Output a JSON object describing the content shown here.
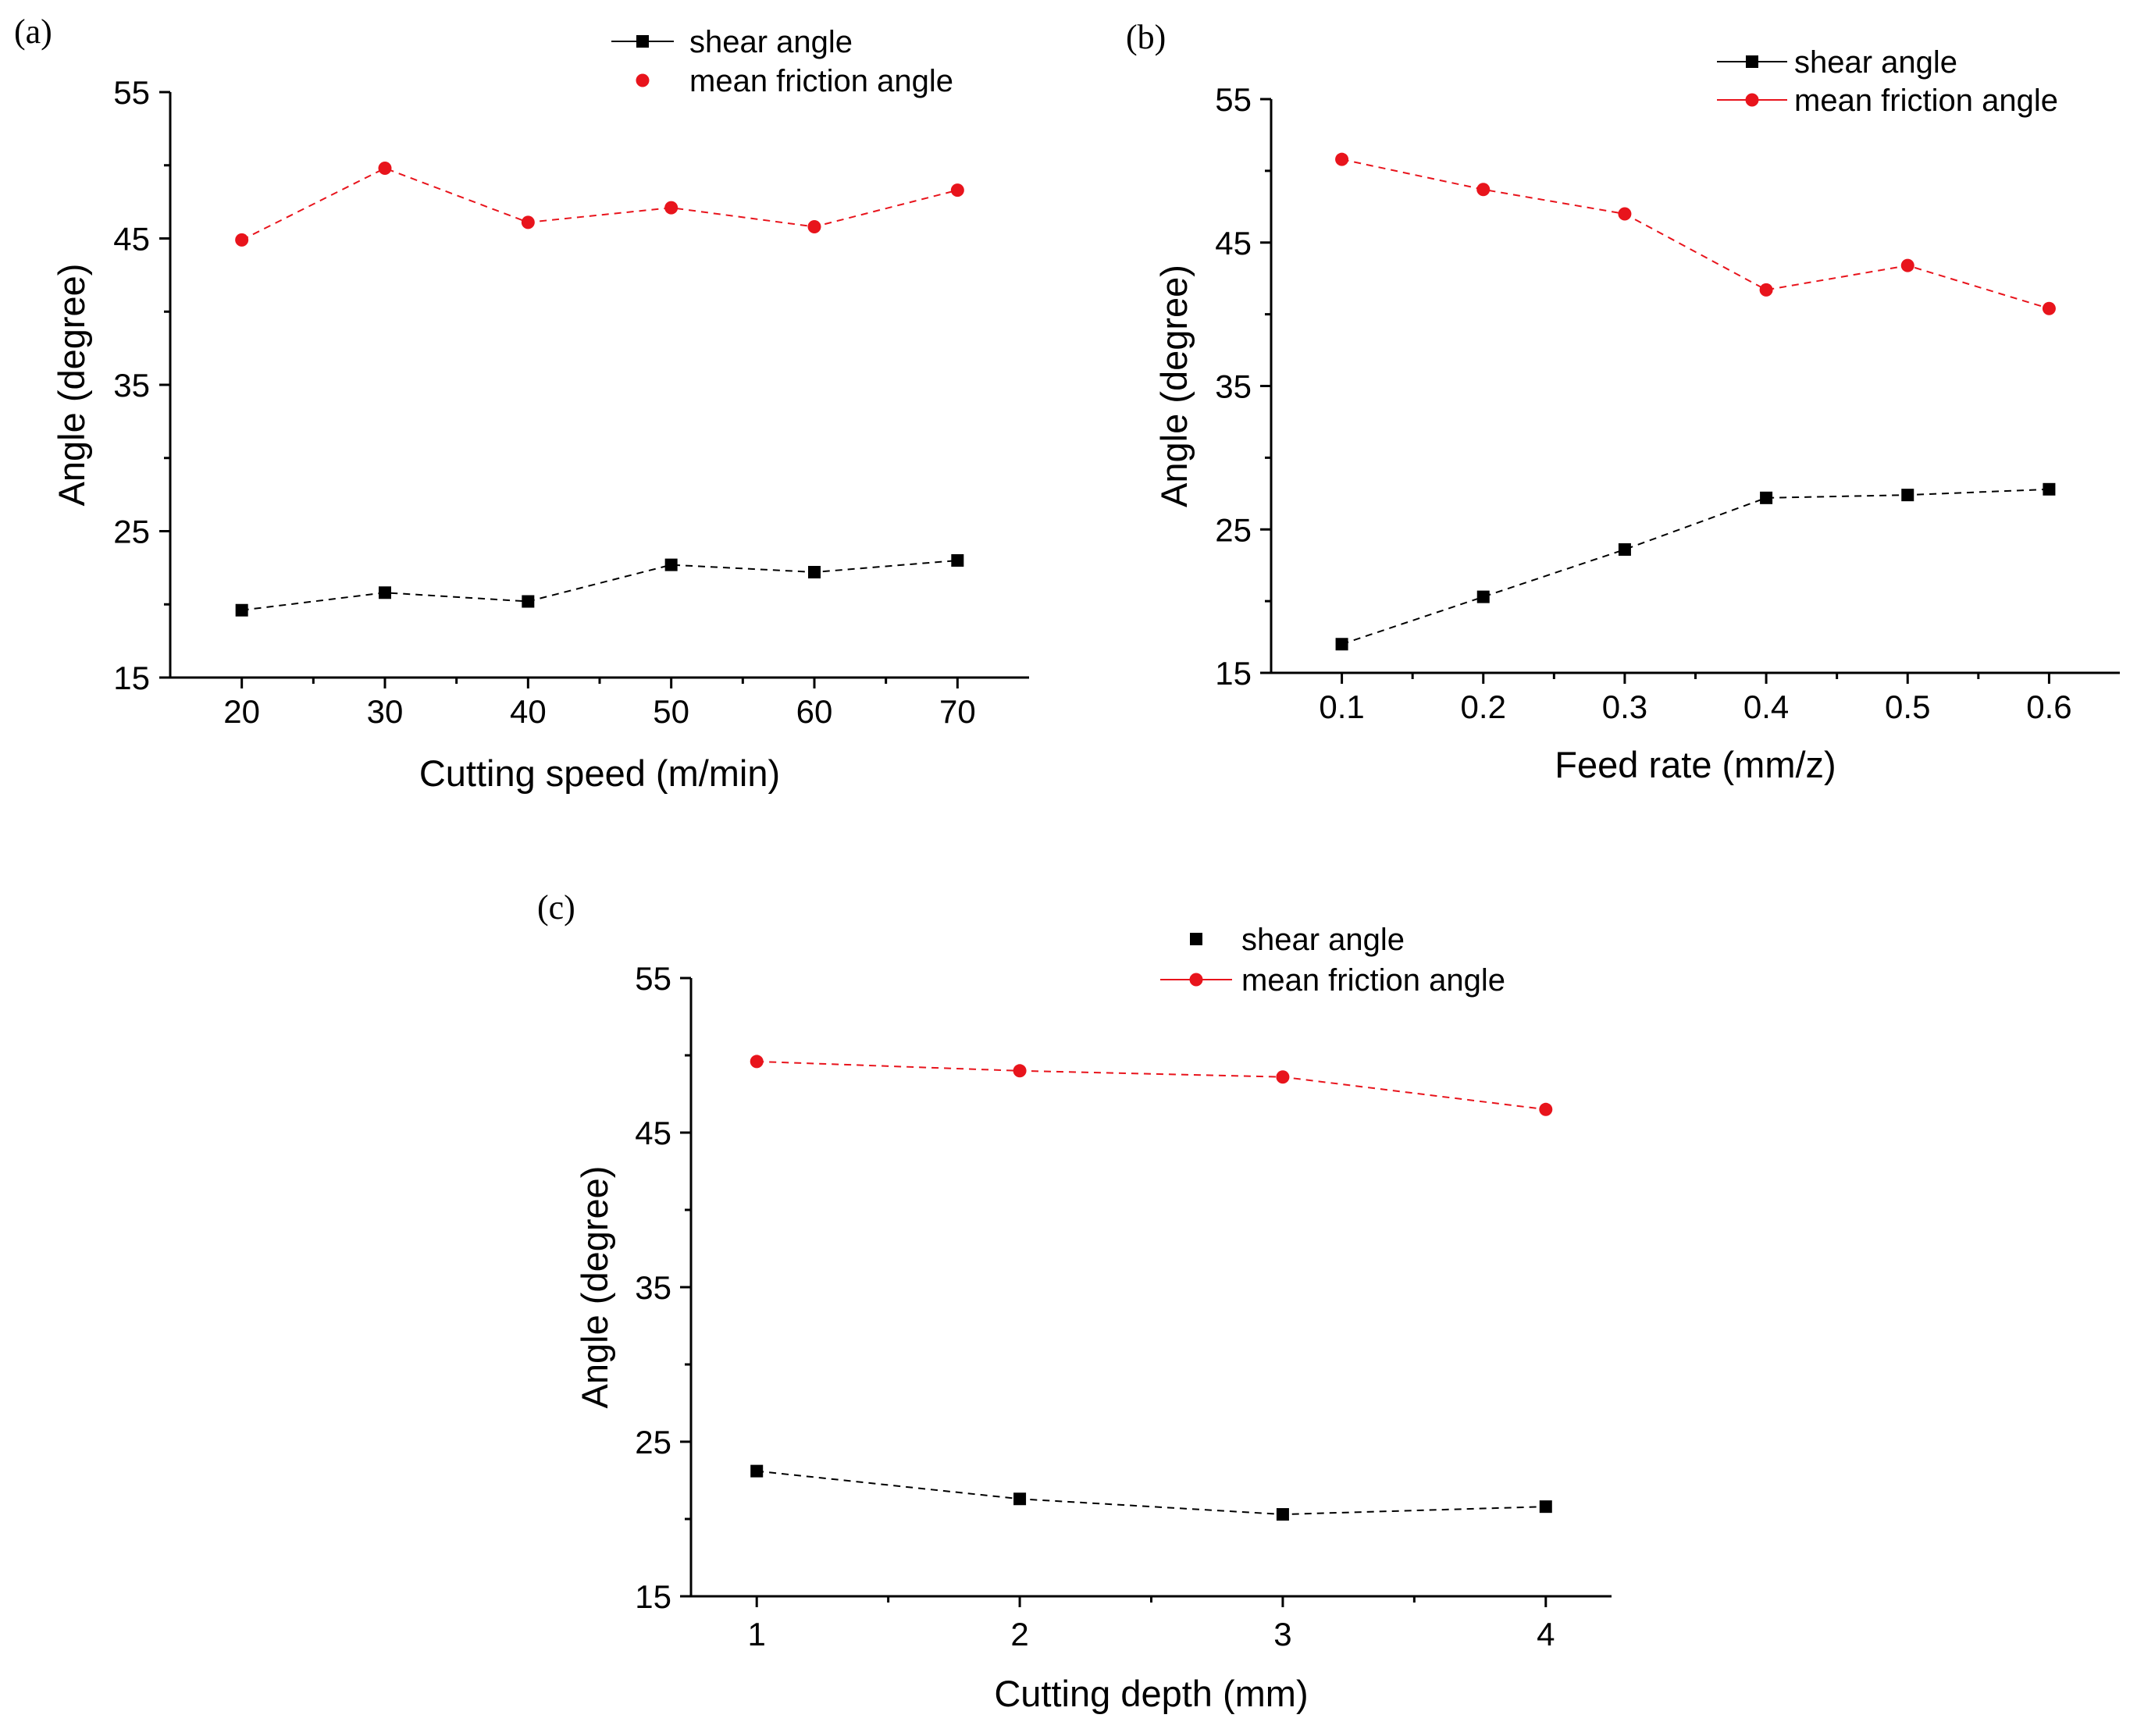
{
  "chart_data": [
    {
      "type": "line",
      "panel_label": "(a)",
      "xlabel": "Cutting speed (m/min)",
      "ylabel": "Angle (degree)",
      "x": [
        20,
        30,
        40,
        50,
        60,
        70
      ],
      "x_ticks": [
        "20",
        "30",
        "40",
        "50",
        "60",
        "70"
      ],
      "xlim": [
        15,
        75
      ],
      "ylim": [
        15,
        55
      ],
      "y_ticks": [
        "15",
        "25",
        "35",
        "45",
        "55"
      ],
      "grid": false,
      "legend_position": "top-right",
      "series": [
        {
          "name": "shear angle",
          "color": "#000000",
          "marker": "square",
          "values": [
            19.6,
            20.8,
            20.2,
            22.7,
            22.2,
            23.0
          ]
        },
        {
          "name": "mean friction angle",
          "color": "#e8141c",
          "marker": "circle",
          "values": [
            44.9,
            49.8,
            46.1,
            47.1,
            45.8,
            48.3
          ]
        }
      ]
    },
    {
      "type": "line",
      "panel_label": "(b)",
      "xlabel": "Feed rate (mm/z)",
      "ylabel": "Angle (degree)",
      "x": [
        0.1,
        0.2,
        0.3,
        0.4,
        0.5,
        0.6
      ],
      "x_ticks": [
        "0.1",
        "0.2",
        "0.3",
        "0.4",
        "0.5",
        "0.6"
      ],
      "xlim": [
        0.05,
        0.65
      ],
      "ylim": [
        15,
        55
      ],
      "y_ticks": [
        "15",
        "25",
        "35",
        "45",
        "55"
      ],
      "grid": false,
      "legend_position": "top-right",
      "series": [
        {
          "name": "shear angle",
          "color": "#000000",
          "marker": "square",
          "values": [
            17.0,
            20.3,
            23.6,
            27.2,
            27.4,
            27.8
          ]
        },
        {
          "name": "mean friction angle",
          "color": "#e8141c",
          "marker": "circle",
          "values": [
            50.8,
            48.7,
            47.0,
            41.7,
            43.4,
            40.4
          ]
        }
      ]
    },
    {
      "type": "line",
      "panel_label": "(c)",
      "xlabel": "Cutting depth (mm)",
      "ylabel": "Angle (degree)",
      "x": [
        1,
        2,
        3,
        4
      ],
      "x_ticks": [
        "1",
        "2",
        "3",
        "4"
      ],
      "xlim": [
        0.75,
        4.25
      ],
      "ylim": [
        15,
        55
      ],
      "y_ticks": [
        "15",
        "25",
        "35",
        "45",
        "55"
      ],
      "grid": false,
      "legend_position": "top-right",
      "series": [
        {
          "name": "shear angle",
          "color": "#000000",
          "marker": "square",
          "values": [
            23.1,
            21.3,
            20.3,
            20.8
          ]
        },
        {
          "name": "mean friction angle",
          "color": "#e8141c",
          "marker": "circle",
          "values": [
            49.6,
            49.0,
            48.6,
            46.5
          ]
        }
      ]
    }
  ]
}
